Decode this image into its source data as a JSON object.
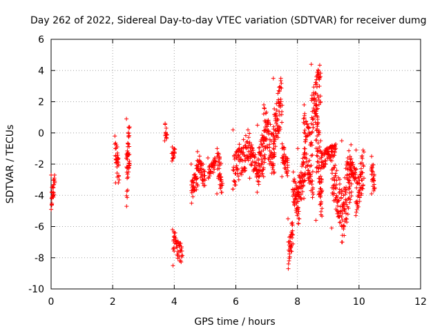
{
  "chart_data": {
    "type": "scatter",
    "title": "Day 262 of 2022, Sidereal Day-to-day VTEC variation (SDTVAR) for receiver dumg",
    "xlabel": "GPS time / hours",
    "ylabel": "SDTVAR / TECUs",
    "xlim": [
      0,
      12
    ],
    "ylim": [
      -10,
      6
    ],
    "xticks": [
      0,
      2,
      4,
      6,
      8,
      10,
      12
    ],
    "yticks": [
      -10,
      -8,
      -6,
      -4,
      -2,
      0,
      2,
      4,
      6
    ],
    "grid": true,
    "marker": "+",
    "color": "#ff0000",
    "clusters": [
      {
        "x": [
          0.0,
          0.12
        ],
        "y": [
          -4.9,
          -2.7
        ]
      },
      {
        "x": [
          2.08,
          2.2
        ],
        "y": [
          -3.2,
          -0.2
        ]
      },
      {
        "x": [
          2.45,
          2.55
        ],
        "y": [
          -4.7,
          0.9
        ]
      },
      {
        "x": [
          3.7,
          3.75
        ],
        "y": [
          -0.5,
          0.6
        ]
      },
      {
        "x": [
          3.92,
          4.02
        ],
        "y": [
          -1.8,
          -0.9
        ]
      },
      {
        "x": [
          3.95,
          4.25
        ],
        "y": [
          -8.5,
          -6.2
        ]
      },
      {
        "x": [
          4.55,
          4.75
        ],
        "y": [
          -4.5,
          -2.0
        ]
      },
      {
        "x": [
          4.75,
          5.0
        ],
        "y": [
          -3.4,
          -1.2
        ]
      },
      {
        "x": [
          5.1,
          5.35
        ],
        "y": [
          -2.9,
          -1.6
        ]
      },
      {
        "x": [
          5.4,
          5.55
        ],
        "y": [
          -3.9,
          -1.0
        ]
      },
      {
        "x": [
          5.9,
          6.45
        ],
        "y": [
          -3.6,
          0.2
        ]
      },
      {
        "x": [
          6.45,
          6.7
        ],
        "y": [
          -2.9,
          -0.6
        ]
      },
      {
        "x": [
          6.7,
          6.95
        ],
        "y": [
          -3.8,
          0.5
        ]
      },
      {
        "x": [
          6.9,
          7.25
        ],
        "y": [
          -2.8,
          1.8
        ]
      },
      {
        "x": [
          7.2,
          7.5
        ],
        "y": [
          -1.6,
          3.5
        ]
      },
      {
        "x": [
          7.5,
          7.7
        ],
        "y": [
          -2.8,
          -0.7
        ]
      },
      {
        "x": [
          7.7,
          7.85
        ],
        "y": [
          -8.7,
          -5.5
        ]
      },
      {
        "x": [
          7.85,
          8.05
        ],
        "y": [
          -5.9,
          -2.5
        ]
      },
      {
        "x": [
          8.0,
          8.25
        ],
        "y": [
          -5.3,
          -1.0
        ]
      },
      {
        "x": [
          8.2,
          8.5
        ],
        "y": [
          -4.2,
          1.8
        ]
      },
      {
        "x": [
          8.45,
          8.75
        ],
        "y": [
          0.0,
          4.4
        ]
      },
      {
        "x": [
          8.6,
          8.8
        ],
        "y": [
          -5.6,
          1.8
        ]
      },
      {
        "x": [
          8.75,
          9.25
        ],
        "y": [
          -2.3,
          -0.5
        ]
      },
      {
        "x": [
          9.1,
          9.45
        ],
        "y": [
          -6.1,
          -1.2
        ]
      },
      {
        "x": [
          9.45,
          9.75
        ],
        "y": [
          -7.0,
          -0.5
        ]
      },
      {
        "x": [
          9.7,
          9.9
        ],
        "y": [
          -3.2,
          -1.5
        ]
      },
      {
        "x": [
          9.9,
          10.15
        ],
        "y": [
          -5.3,
          -1.1
        ]
      },
      {
        "x": [
          10.4,
          10.5
        ],
        "y": [
          -3.9,
          -1.5
        ]
      }
    ]
  }
}
